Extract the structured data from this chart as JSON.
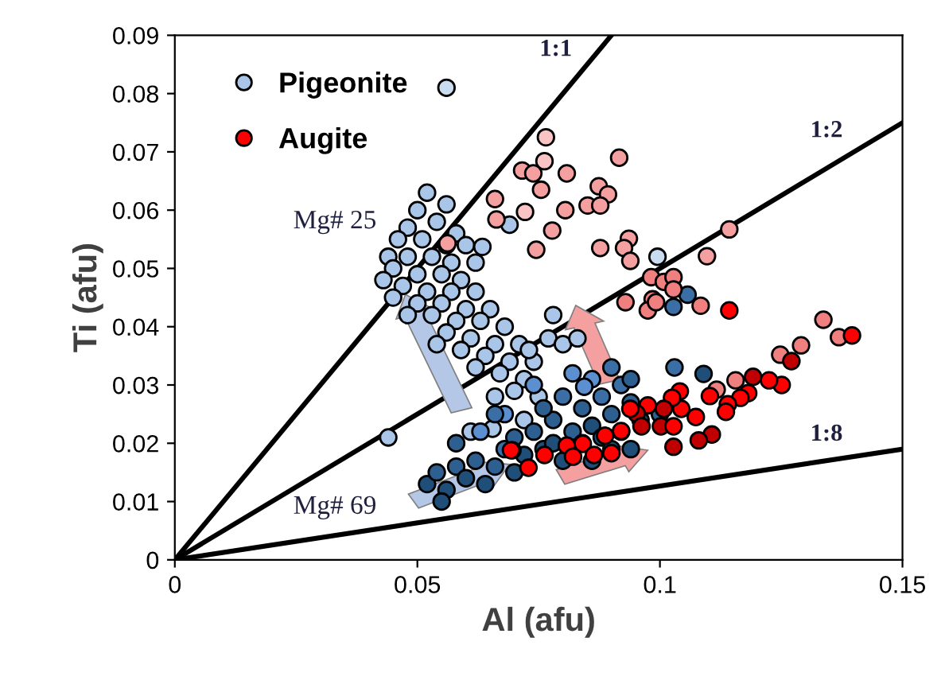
{
  "chart_data": {
    "type": "scatter",
    "xlabel": "Al (afu)",
    "ylabel": "Ti (afu)",
    "xlim": [
      0,
      0.15
    ],
    "ylim": [
      0,
      0.09
    ],
    "xticks": [
      0,
      0.05,
      0.1,
      0.15
    ],
    "yticks": [
      0,
      0.01,
      0.02,
      0.03,
      0.04,
      0.05,
      0.06,
      0.07,
      0.08,
      0.09
    ],
    "grid": false,
    "legend": "top left",
    "marker": "circle",
    "annotations": [
      "Mg# 25",
      "Mg# 69"
    ],
    "series": [
      {
        "type": "line",
        "name": "1:1",
        "color": "#000000",
        "marker": "none",
        "x": [
          0,
          0.09
        ],
        "values": [
          0,
          0.09
        ]
      },
      {
        "type": "line",
        "name": "1:2",
        "color": "#000000",
        "marker": "none",
        "x": [
          0,
          0.15
        ],
        "values": [
          0,
          0.075
        ]
      },
      {
        "type": "line",
        "name": "1:8",
        "color": "#000000",
        "marker": "none",
        "x": [
          0,
          0.15
        ],
        "values": [
          0,
          0.019
        ]
      },
      {
        "name": "Pigeonite",
        "color": "#a9c6e8",
        "x": [
          0.056,
          0.052,
          0.056,
          0.05,
          0.048,
          0.054,
          0.058,
          0.046,
          0.051,
          0.056,
          0.06,
          0.044,
          0.048,
          0.053,
          0.057,
          0.062,
          0.045,
          0.05,
          0.055,
          0.059,
          0.043,
          0.047,
          0.052,
          0.057,
          0.062,
          0.045,
          0.05,
          0.055,
          0.06,
          0.065,
          0.048,
          0.053,
          0.058,
          0.063,
          0.068,
          0.056,
          0.061,
          0.066,
          0.071,
          0.054,
          0.059,
          0.064,
          0.069,
          0.074,
          0.062,
          0.067,
          0.072,
          0.077,
          0.078,
          0.07,
          0.075,
          0.066,
          0.073,
          0.08,
          0.083,
          0.044,
          0.061,
          0.0655,
          0.072,
          0.0995,
          0.069,
          0.0634,
          0.063,
          0.068,
          0.052,
          0.054,
          0.056,
          0.058,
          0.06,
          0.055,
          0.062,
          0.064,
          0.066,
          0.068,
          0.07,
          0.07,
          0.072,
          0.074,
          0.076,
          0.078,
          0.078,
          0.08,
          0.082,
          0.084,
          0.084,
          0.086,
          0.088,
          0.088,
          0.09,
          0.092,
          0.092,
          0.094,
          0.096,
          0.086,
          0.08,
          0.076,
          0.074,
          0.058,
          0.066,
          0.086,
          0.09,
          0.094,
          0.1,
          0.103,
          0.082,
          0.09,
          0.094,
          0.109,
          0.0844,
          0.1057,
          0.1028
        ],
        "values": [
          0.081,
          0.063,
          0.061,
          0.06,
          0.057,
          0.058,
          0.056,
          0.055,
          0.055,
          0.054,
          0.054,
          0.052,
          0.052,
          0.052,
          0.051,
          0.051,
          0.05,
          0.049,
          0.049,
          0.048,
          0.048,
          0.047,
          0.046,
          0.046,
          0.046,
          0.045,
          0.044,
          0.044,
          0.043,
          0.043,
          0.042,
          0.042,
          0.041,
          0.041,
          0.04,
          0.039,
          0.038,
          0.037,
          0.037,
          0.037,
          0.036,
          0.035,
          0.034,
          0.034,
          0.033,
          0.032,
          0.031,
          0.038,
          0.042,
          0.029,
          0.028,
          0.028,
          0.036,
          0.037,
          0.038,
          0.021,
          0.022,
          0.0225,
          0.024,
          0.052,
          0.0575,
          0.0537,
          0.022,
          0.025,
          0.013,
          0.015,
          0.012,
          0.016,
          0.014,
          0.01,
          0.017,
          0.013,
          0.016,
          0.019,
          0.015,
          0.021,
          0.018,
          0.022,
          0.019,
          0.024,
          0.02,
          0.017,
          0.022,
          0.02,
          0.026,
          0.023,
          0.021,
          0.028,
          0.025,
          0.022,
          0.03,
          0.027,
          0.024,
          0.031,
          0.028,
          0.026,
          0.03,
          0.02,
          0.025,
          0.017,
          0.019,
          0.019,
          0.025,
          0.033,
          0.032,
          0.033,
          0.031,
          0.0319,
          0.0297,
          0.0455,
          0.0434
        ],
        "colors": [
          "#c9dcf0",
          "#a9c6e8",
          "#a9c6e8",
          "#a9c6e8",
          "#a9c6e8",
          "#a9c6e8",
          "#a9c6e8",
          "#a9c6e8",
          "#a9c6e8",
          "#a9c6e8",
          "#a9c6e8",
          "#a9c6e8",
          "#a9c6e8",
          "#a9c6e8",
          "#a9c6e8",
          "#a9c6e8",
          "#a9c6e8",
          "#a9c6e8",
          "#a9c6e8",
          "#a9c6e8",
          "#a9c6e8",
          "#a9c6e8",
          "#a9c6e8",
          "#a9c6e8",
          "#a9c6e8",
          "#a9c6e8",
          "#a9c6e8",
          "#a9c6e8",
          "#a9c6e8",
          "#a9c6e8",
          "#a9c6e8",
          "#a9c6e8",
          "#a9c6e8",
          "#a9c6e8",
          "#a9c6e8",
          "#a9c6e8",
          "#a9c6e8",
          "#a9c6e8",
          "#a9c6e8",
          "#a9c6e8",
          "#a9c6e8",
          "#a9c6e8",
          "#a9c6e8",
          "#a9c6e8",
          "#a9c6e8",
          "#a9c6e8",
          "#a9c6e8",
          "#a9c6e8",
          "#a9c6e8",
          "#a9c6e8",
          "#a9c6e8",
          "#a9c6e8",
          "#a9c6e8",
          "#a9c6e8",
          "#a9c6e8",
          "#a9c6e8",
          "#a9c6e8",
          "#a9c6e8",
          "#a9c6e8",
          "#c9dcf0",
          "#a9c6e8",
          "#a9c6e8",
          "#5b8fd0",
          "#5b8fd0",
          "#1f4e79",
          "#2e5f91",
          "#1f4e79",
          "#2e5f91",
          "#1f4e79",
          "#1f4e79",
          "#2e5f91",
          "#1f4e79",
          "#2e5f91",
          "#3a6ea5",
          "#1f4e79",
          "#2e5f91",
          "#1f4e79",
          "#2e5f91",
          "#1f4e79",
          "#2e5f91",
          "#1f4e79",
          "#1f4e79",
          "#2e5f91",
          "#1f4e79",
          "#2e5f91",
          "#1f4e79",
          "#1f4e79",
          "#3a6ea5",
          "#2e5f91",
          "#1f4e79",
          "#3a6ea5",
          "#2e5f91",
          "#1f4e79",
          "#5b8fd0",
          "#3a6ea5",
          "#2e5f91",
          "#5b8fd0",
          "#2e5f91",
          "#3a6ea5",
          "#1f4e79",
          "#1f4e79",
          "#1f4e79",
          "#2e5f91",
          "#3a6ea5",
          "#5b8fd0",
          "#3a6ea5",
          "#2e5f91",
          "#1f4e79",
          "#5b8fd0",
          "#3a6ea5",
          "#3a6ea5"
        ]
      },
      {
        "name": "Augite",
        "color": "#ff0000",
        "x": [
          0.0765,
          0.0916,
          0.0762,
          0.0716,
          0.0739,
          0.0808,
          0.0755,
          0.0874,
          0.0893,
          0.0851,
          0.0877,
          0.066,
          0.0722,
          0.0805,
          0.0663,
          0.0778,
          0.0745,
          0.0877,
          0.0936,
          0.0926,
          0.0939,
          0.1097,
          0.1143,
          0.0982,
          0.1008,
          0.1028,
          0.1028,
          0.0929,
          0.1084,
          0.0985,
          0.0562,
          0.1337,
          0.1369,
          0.1291,
          0.1248,
          0.1156,
          0.0975,
          0.0992,
          0.1117,
          0.1143,
          0.1396,
          0.1271,
          0.1251,
          0.1225,
          0.1192,
          0.1182,
          0.1166,
          0.114,
          0.1136,
          0.1103,
          0.1074,
          0.1044,
          0.1041,
          0.1025,
          0.1008,
          0.0975,
          0.0952,
          0.0939,
          0.0962,
          0.1002,
          0.1028,
          0.1107,
          0.108,
          0.1028,
          0.092,
          0.0887,
          0.0841,
          0.0808,
          0.0762,
          0.0729,
          0.0696,
          0.0864,
          0.09,
          0.0821,
          0.0693
        ],
        "values": [
          0.0725,
          0.069,
          0.0684,
          0.0668,
          0.0663,
          0.0663,
          0.0635,
          0.0641,
          0.0627,
          0.0608,
          0.0608,
          0.0619,
          0.0597,
          0.06,
          0.0584,
          0.0565,
          0.0532,
          0.0535,
          0.0551,
          0.0535,
          0.0513,
          0.0521,
          0.0567,
          0.0485,
          0.0477,
          0.0485,
          0.0464,
          0.0442,
          0.0436,
          0.0447,
          0.0543,
          0.0412,
          0.0382,
          0.0368,
          0.0352,
          0.0308,
          0.0428,
          0.0442,
          0.0292,
          0.0428,
          0.0385,
          0.0341,
          0.03,
          0.0308,
          0.0314,
          0.0286,
          0.0278,
          0.0267,
          0.0254,
          0.0281,
          0.0245,
          0.0259,
          0.0289,
          0.0278,
          0.0259,
          0.0265,
          0.0251,
          0.0259,
          0.0229,
          0.0229,
          0.0229,
          0.0215,
          0.0205,
          0.0194,
          0.0221,
          0.0213,
          0.0199,
          0.0196,
          0.018,
          0.0158,
          0.0188,
          0.018,
          0.0183,
          0.0177,
          0.0188
        ],
        "colors": [
          "#f8c4c4",
          "#f4a0a0",
          "#f8c4c4",
          "#f4a0a0",
          "#f4a0a0",
          "#f4a0a0",
          "#f4a0a0",
          "#f4a0a0",
          "#f4a0a0",
          "#f4a0a0",
          "#f4a0a0",
          "#f4a0a0",
          "#f8c4c4",
          "#f4a0a0",
          "#f4a0a0",
          "#f4a0a0",
          "#f4a0a0",
          "#f4a0a0",
          "#f4a0a0",
          "#f4a0a0",
          "#f4a0a0",
          "#f4a0a0",
          "#f4a0a0",
          "#f08080",
          "#f08080",
          "#f08080",
          "#f08080",
          "#f08080",
          "#f08080",
          "#f08080",
          "#f4a0a0",
          "#f08080",
          "#f08080",
          "#f08080",
          "#f08080",
          "#f08080",
          "#f08080",
          "#f08080",
          "#f08080",
          "#ff0000",
          "#ff0000",
          "#c00000",
          "#ff0000",
          "#ff0000",
          "#c00000",
          "#ff0000",
          "#ff0000",
          "#ff0000",
          "#ff0000",
          "#ff0000",
          "#ff0000",
          "#ff0000",
          "#ff0000",
          "#ff0000",
          "#c00000",
          "#ff0000",
          "#c00000",
          "#ff0000",
          "#c00000",
          "#c00000",
          "#ff0000",
          "#c00000",
          "#c00000",
          "#c00000",
          "#ff0000",
          "#ff0000",
          "#ff0000",
          "#ff0000",
          "#ff0000",
          "#ff0000",
          "#ff0000",
          "#ff0000",
          "#ff0000",
          "#ff0000",
          "#ff0000"
        ]
      }
    ]
  }
}
